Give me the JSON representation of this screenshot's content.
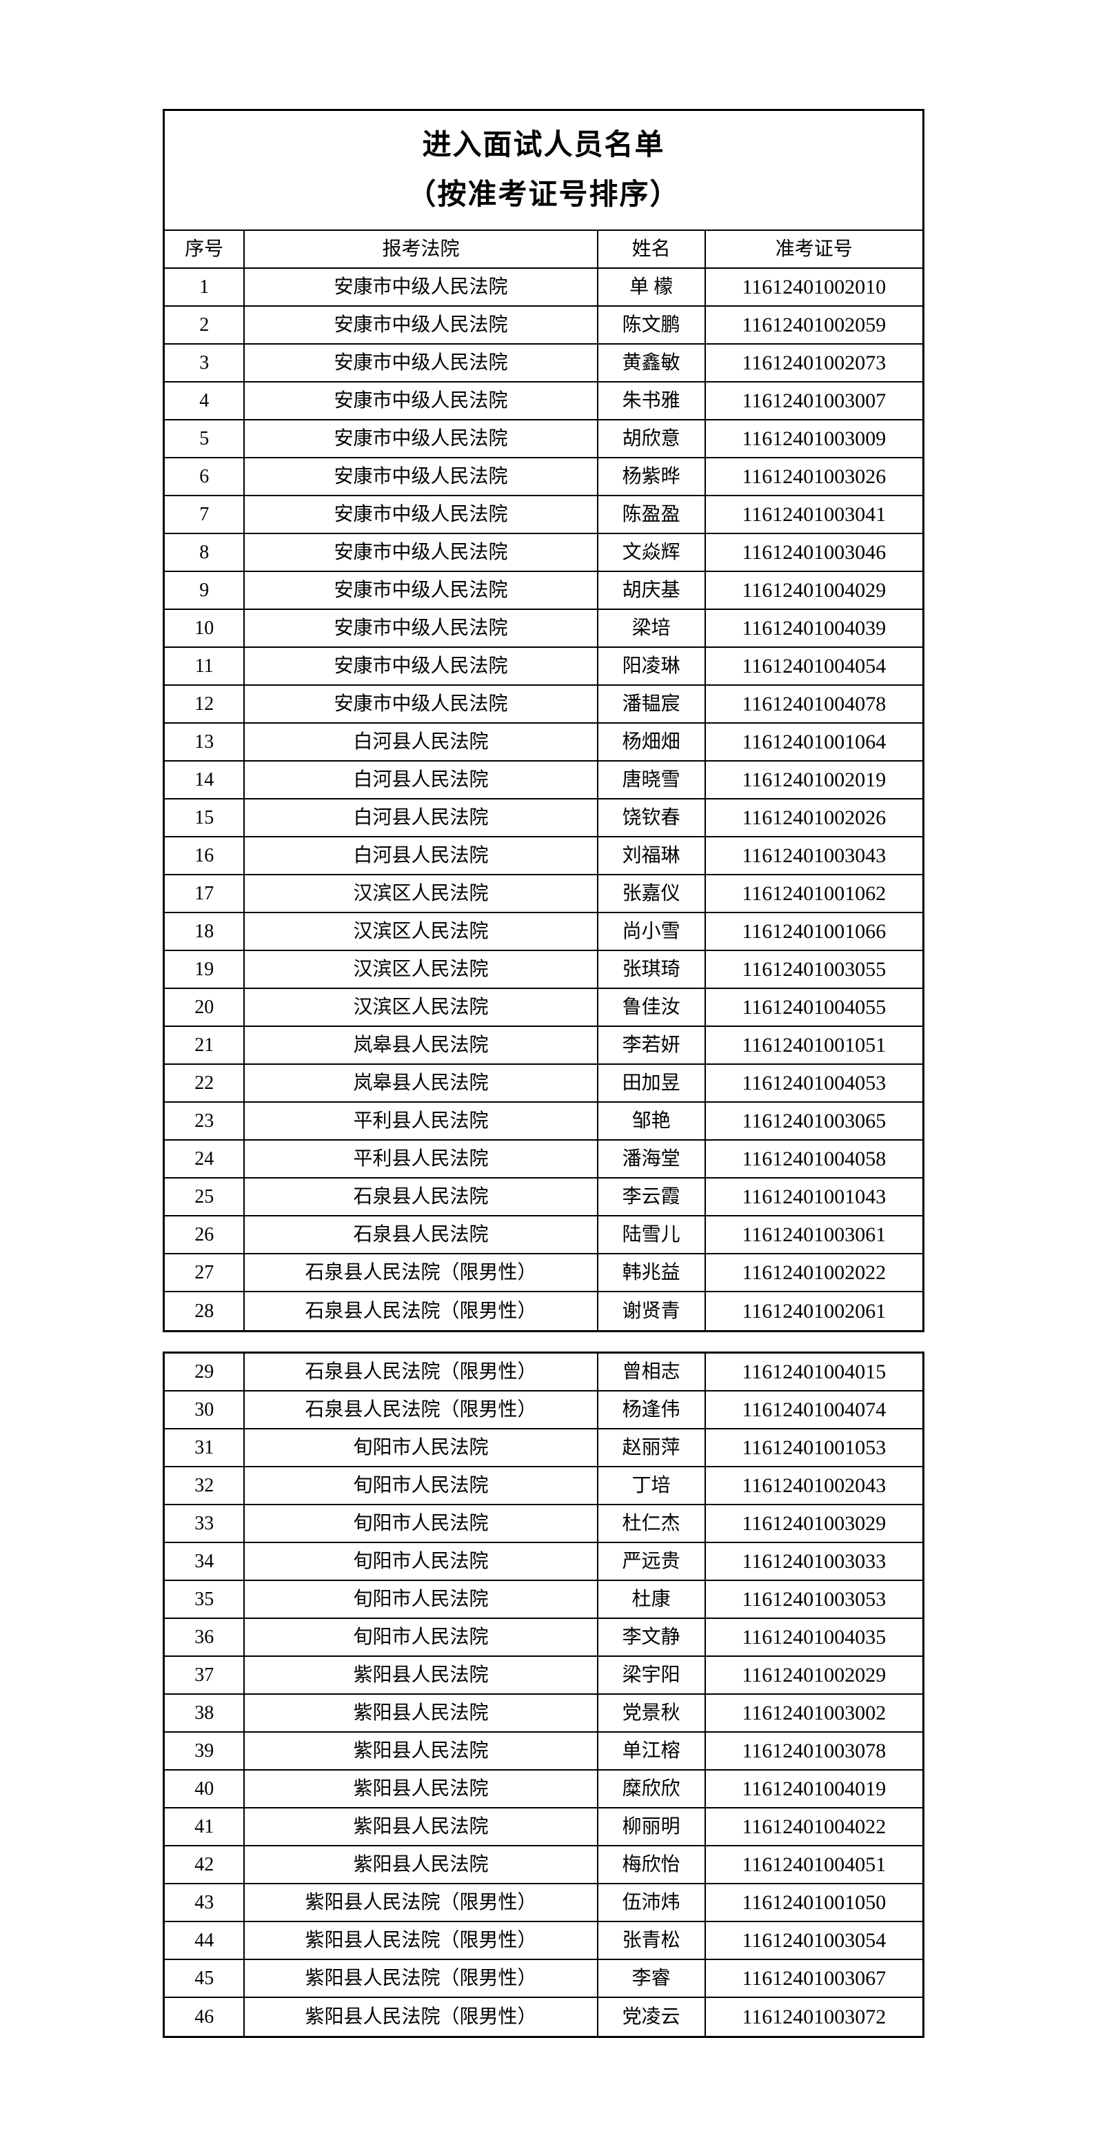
{
  "page": {
    "title": "进入面试人员名单",
    "subtitle": "（按准考证号排序）"
  },
  "table": {
    "headers": [
      "序号",
      "报考法院",
      "姓名",
      "准考证号"
    ],
    "sections": [
      {
        "rows": [
          [
            "1",
            "安康市中级人民法院",
            "单 檬",
            "11612401002010"
          ],
          [
            "2",
            "安康市中级人民法院",
            "陈文鹏",
            "11612401002059"
          ],
          [
            "3",
            "安康市中级人民法院",
            "黄鑫敏",
            "11612401002073"
          ],
          [
            "4",
            "安康市中级人民法院",
            "朱书雅",
            "11612401003007"
          ],
          [
            "5",
            "安康市中级人民法院",
            "胡欣意",
            "11612401003009"
          ],
          [
            "6",
            "安康市中级人民法院",
            "杨紫晔",
            "11612401003026"
          ],
          [
            "7",
            "安康市中级人民法院",
            "陈盈盈",
            "11612401003041"
          ],
          [
            "8",
            "安康市中级人民法院",
            "文焱辉",
            "11612401003046"
          ],
          [
            "9",
            "安康市中级人民法院",
            "胡庆基",
            "11612401004029"
          ],
          [
            "10",
            "安康市中级人民法院",
            "梁培",
            "11612401004039"
          ],
          [
            "11",
            "安康市中级人民法院",
            "阳凌琳",
            "11612401004054"
          ],
          [
            "12",
            "安康市中级人民法院",
            "潘韫宸",
            "11612401004078"
          ],
          [
            "13",
            "白河县人民法院",
            "杨畑畑",
            "11612401001064"
          ],
          [
            "14",
            "白河县人民法院",
            "唐晓雪",
            "11612401002019"
          ],
          [
            "15",
            "白河县人民法院",
            "饶钦春",
            "11612401002026"
          ],
          [
            "16",
            "白河县人民法院",
            "刘福琳",
            "11612401003043"
          ],
          [
            "17",
            "汉滨区人民法院",
            "张嘉仪",
            "11612401001062"
          ],
          [
            "18",
            "汉滨区人民法院",
            "尚小雪",
            "11612401001066"
          ],
          [
            "19",
            "汉滨区人民法院",
            "张琪琦",
            "11612401003055"
          ],
          [
            "20",
            "汉滨区人民法院",
            "鲁佳汝",
            "11612401004055"
          ],
          [
            "21",
            "岚皋县人民法院",
            "李若妍",
            "11612401001051"
          ],
          [
            "22",
            "岚皋县人民法院",
            "田加昱",
            "11612401004053"
          ],
          [
            "23",
            "平利县人民法院",
            "邹艳",
            "11612401003065"
          ],
          [
            "24",
            "平利县人民法院",
            "潘海堂",
            "11612401004058"
          ],
          [
            "25",
            "石泉县人民法院",
            "李云霞",
            "11612401001043"
          ],
          [
            "26",
            "石泉县人民法院",
            "陆雪儿",
            "11612401003061"
          ],
          [
            "27",
            "石泉县人民法院（限男性）",
            "韩兆益",
            "11612401002022"
          ],
          [
            "28",
            "石泉县人民法院（限男性）",
            "谢贤青",
            "11612401002061"
          ]
        ]
      },
      {
        "rows": [
          [
            "29",
            "石泉县人民法院（限男性）",
            "曾相志",
            "11612401004015"
          ],
          [
            "30",
            "石泉县人民法院（限男性）",
            "杨逢伟",
            "11612401004074"
          ],
          [
            "31",
            "旬阳市人民法院",
            "赵丽萍",
            "11612401001053"
          ],
          [
            "32",
            "旬阳市人民法院",
            "丁培",
            "11612401002043"
          ],
          [
            "33",
            "旬阳市人民法院",
            "杜仁杰",
            "11612401003029"
          ],
          [
            "34",
            "旬阳市人民法院",
            "严远贵",
            "11612401003033"
          ],
          [
            "35",
            "旬阳市人民法院",
            "杜康",
            "11612401003053"
          ],
          [
            "36",
            "旬阳市人民法院",
            "李文静",
            "11612401004035"
          ],
          [
            "37",
            "紫阳县人民法院",
            "梁宇阳",
            "11612401002029"
          ],
          [
            "38",
            "紫阳县人民法院",
            "党景秋",
            "11612401003002"
          ],
          [
            "39",
            "紫阳县人民法院",
            "单江榕",
            "11612401003078"
          ],
          [
            "40",
            "紫阳县人民法院",
            "糜欣欣",
            "11612401004019"
          ],
          [
            "41",
            "紫阳县人民法院",
            "柳丽明",
            "11612401004022"
          ],
          [
            "42",
            "紫阳县人民法院",
            "梅欣怡",
            "11612401004051"
          ],
          [
            "43",
            "紫阳县人民法院（限男性）",
            "伍沛炜",
            "11612401001050"
          ],
          [
            "44",
            "紫阳县人民法院（限男性）",
            "张青松",
            "11612401003054"
          ],
          [
            "45",
            "紫阳县人民法院（限男性）",
            "李睿",
            "11612401003067"
          ],
          [
            "46",
            "紫阳县人民法院（限男性）",
            "党凌云",
            "11612401003072"
          ]
        ]
      }
    ]
  }
}
